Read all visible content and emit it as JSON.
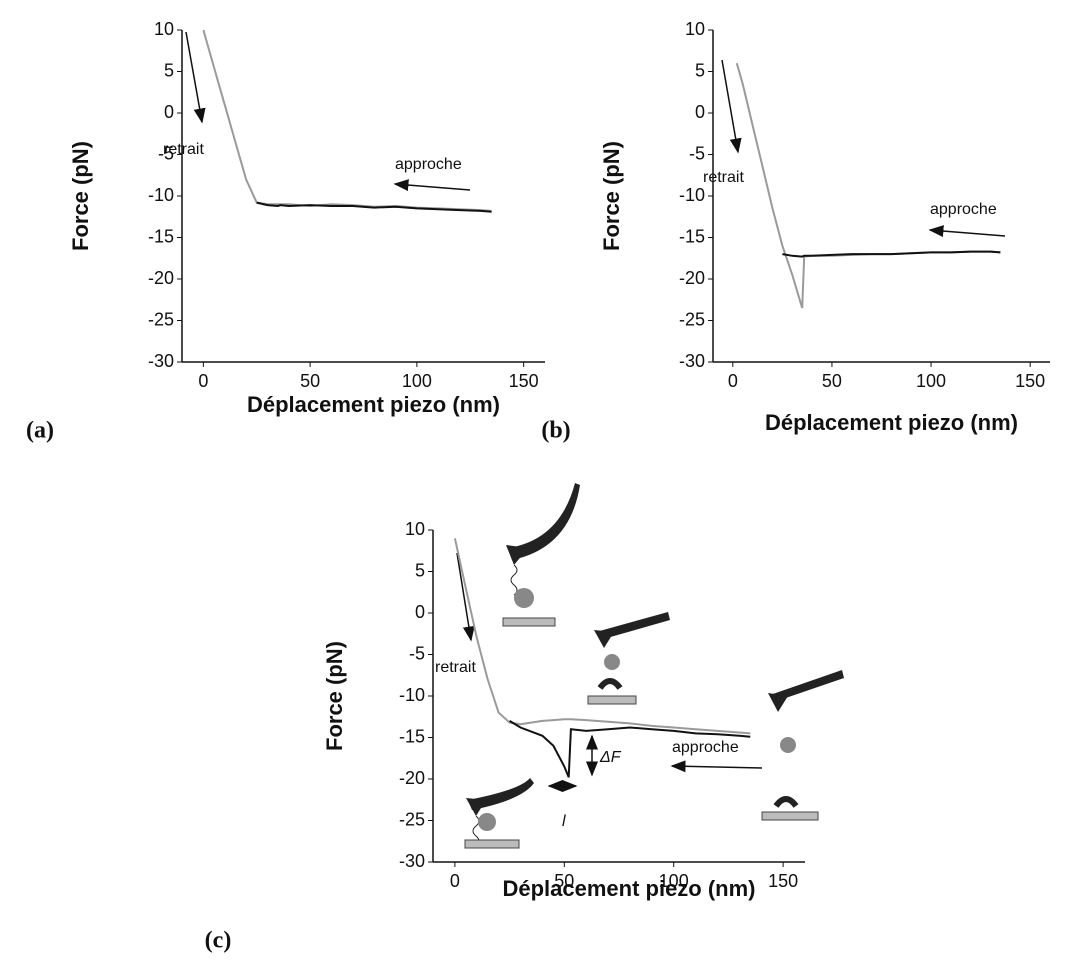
{
  "chart_data": [
    {
      "type": "line",
      "label": "(a)",
      "y_label": "Force (pN)",
      "x_label": "Déplacement piezo (nm)",
      "annotations": [
        "retrait",
        "approche"
      ],
      "x": [
        0,
        5,
        10,
        15,
        20,
        25,
        30,
        35,
        36,
        40,
        50,
        60,
        70,
        80,
        90,
        100,
        110,
        120,
        130,
        135
      ],
      "series": [
        {
          "color": "#9a9a9a",
          "values": [
            10,
            5.5,
            1,
            -3.5,
            -8,
            -10.8,
            -11,
            -11,
            -11,
            -11,
            -11.2,
            -11,
            -11.1,
            -11.3,
            -11.2,
            -11.4,
            -11.5,
            -11.6,
            -11.7,
            -11.8
          ]
        },
        {
          "color": "#111111",
          "values": [
            null,
            null,
            null,
            null,
            null,
            -10.8,
            -11.1,
            -11.2,
            -11.1,
            -11.2,
            -11.1,
            -11.2,
            -11.2,
            -11.4,
            -11.3,
            -11.5,
            -11.6,
            -11.7,
            -11.8,
            -11.9
          ]
        }
      ],
      "xlim": [
        -10,
        160
      ],
      "ylim": [
        -30,
        10
      ],
      "xticks": [
        0,
        50,
        100,
        150
      ],
      "yticks": [
        10,
        5,
        0,
        -5,
        -10,
        -15,
        -20,
        -25,
        -30
      ]
    },
    {
      "type": "line",
      "label": "(b)",
      "y_label": "Force (pN)",
      "x_label": "Déplacement piezo (nm)",
      "annotations": [
        "retrait",
        "approche"
      ],
      "x": [
        2,
        5,
        10,
        15,
        20,
        25,
        30,
        35,
        36,
        40,
        50,
        60,
        70,
        80,
        90,
        100,
        110,
        120,
        130,
        135
      ],
      "series": [
        {
          "color": "#9a9a9a",
          "values": [
            6,
            3.5,
            -1.5,
            -6.5,
            -11.5,
            -16,
            -19.5,
            -23.5,
            -17.3,
            -17.2,
            -17.2,
            -17.1,
            -17,
            -17,
            -16.9,
            -16.8,
            -16.8,
            -16.7,
            -16.7,
            -16.8
          ]
        },
        {
          "color": "#111111",
          "values": [
            null,
            null,
            null,
            null,
            null,
            -17,
            -17.2,
            -17.3,
            -17.2,
            -17.2,
            -17.1,
            -17,
            -17,
            -17,
            -16.9,
            -16.8,
            -16.8,
            -16.7,
            -16.7,
            -16.8
          ]
        }
      ],
      "xlim": [
        -10,
        160
      ],
      "ylim": [
        -30,
        10
      ],
      "xticks": [
        0,
        50,
        100,
        150
      ],
      "yticks": [
        10,
        5,
        0,
        -5,
        -10,
        -15,
        -20,
        -25,
        -30
      ]
    },
    {
      "type": "line",
      "label": "(c)",
      "y_label": "Force (pN)",
      "x_label": "Déplacement piezo (nm)",
      "annotations": [
        "retrait",
        "approche",
        "ΔF",
        "l"
      ],
      "x": [
        0,
        5,
        10,
        15,
        20,
        25,
        30,
        40,
        45,
        50,
        52,
        53,
        60,
        70,
        80,
        90,
        100,
        110,
        120,
        130,
        135
      ],
      "series": [
        {
          "color": "#9a9a9a",
          "values": [
            9,
            3,
            -3,
            -8,
            -12,
            -13.2,
            -13.4,
            -13,
            -12.9,
            -12.8,
            -12.8,
            -12.8,
            -12.9,
            -13.1,
            -13.3,
            -13.6,
            -13.8,
            -14,
            -14.2,
            -14.4,
            -14.5
          ]
        },
        {
          "color": "#111111",
          "values": [
            null,
            null,
            null,
            null,
            null,
            -13,
            -13.8,
            -14.8,
            -16,
            -18.5,
            -19.8,
            -14,
            -14.2,
            -14,
            -13.8,
            -14,
            -14.2,
            -14.5,
            -14.6,
            -14.8,
            -14.9
          ]
        }
      ],
      "xlim": [
        -10,
        160
      ],
      "ylim": [
        -30,
        10
      ],
      "xticks": [
        0,
        50,
        100,
        150
      ],
      "yticks": [
        10,
        5,
        0,
        -5,
        -10,
        -15,
        -20,
        -25,
        -30
      ]
    }
  ]
}
